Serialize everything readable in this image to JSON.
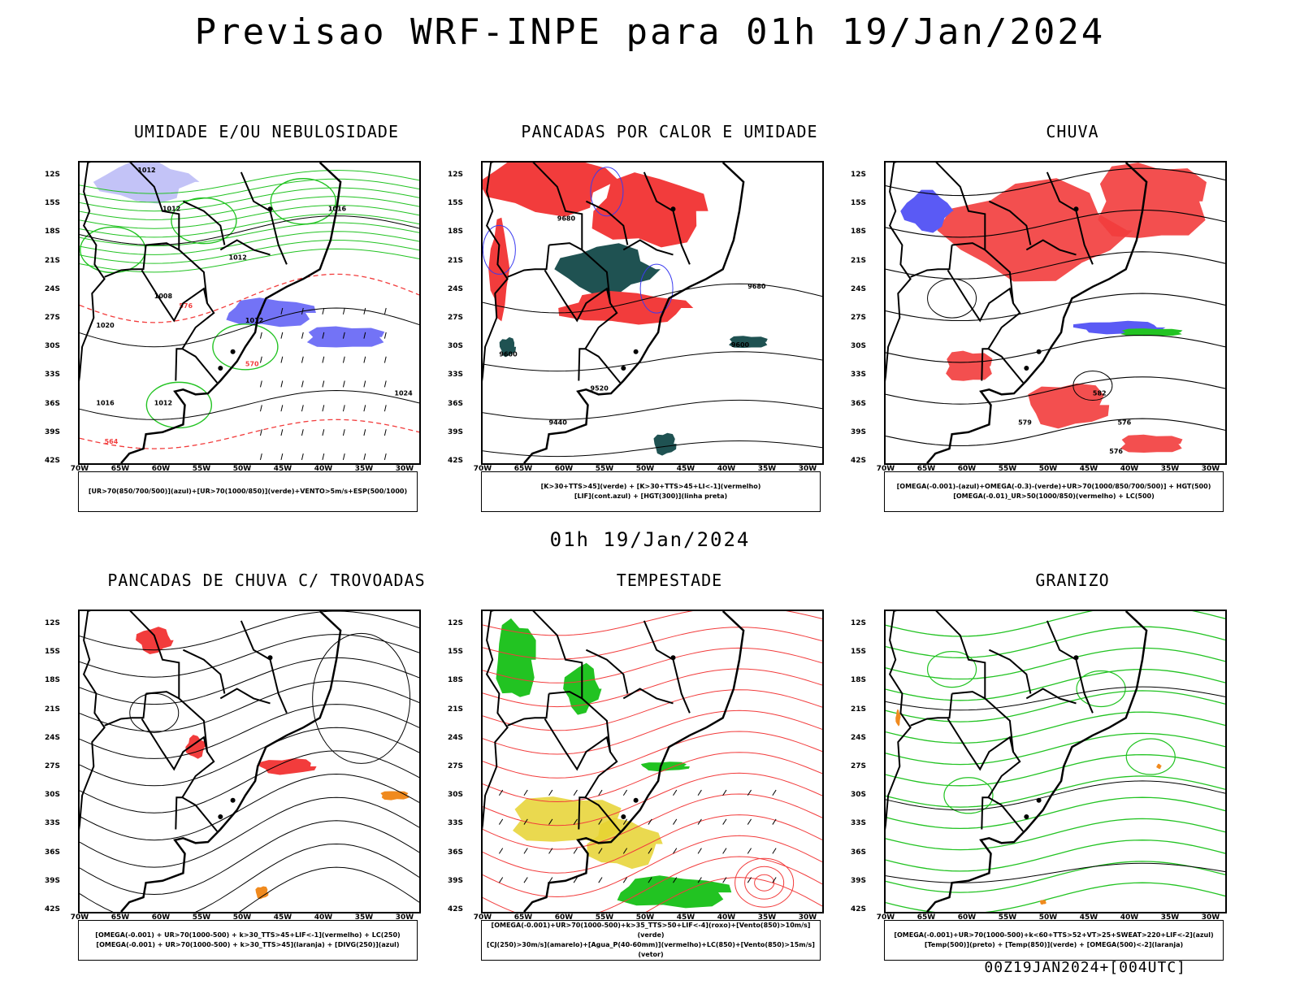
{
  "title": "Previsao WRF-INPE  para 01h 19/Jan/2024",
  "mid_title": "01h 19/Jan/2024",
  "footer": "00Z19JAN2024+[004UTC]",
  "lat_labels": [
    "12S",
    "15S",
    "18S",
    "21S",
    "24S",
    "27S",
    "30S",
    "33S",
    "36S",
    "39S",
    "42S"
  ],
  "lon_labels": [
    "70W",
    "65W",
    "60W",
    "55W",
    "50W",
    "45W",
    "40W",
    "35W",
    "30W"
  ],
  "colors": {
    "blue": "#5a5af5",
    "green": "#22c322",
    "red": "#f23c3c",
    "darkteal": "#1f5252",
    "yellow": "#e6d230",
    "orange": "#f08a1e",
    "purple": "#b4b4f5"
  },
  "panels": [
    {
      "id": "umidade",
      "title": "UMIDADE E/OU NEBULOSIDADE",
      "legend": [
        "[UR>70(850/700/500)](azul)+[UR>70(1000/850)](verde)+VENTO>5m/s+ESP(500/1000)"
      ]
    },
    {
      "id": "pancadas-calor",
      "title": "PANCADAS POR CALOR E UMIDADE",
      "legend": [
        "[K>30+TTS>45](verde) + [K>30+TTS>45+LI<-1](vermelho)",
        "[LIF](cont.azul) + [HGT(300)](linha preta)"
      ]
    },
    {
      "id": "chuva",
      "title": "CHUVA",
      "legend": [
        "[OMEGA(-0.001)-(azul)+OMEGA(-0.3)-(verde)+UR>70(1000/850/700/500)] + HGT(500)",
        "[OMEGA(-0.01)_UR>50(1000/850)(vermelho) + LC(500)"
      ]
    },
    {
      "id": "trovoadas",
      "title": "PANCADAS DE CHUVA C/ TROVOADAS",
      "legend": [
        "[OMEGA(-0.001) + UR>70(1000-500) + k>30_TTS>45+LIF<-1](vermelho) + LC(250)",
        "[OMEGA(-0.001) + UR>70(1000-500) + k>30_TTS>45](laranja) + [DIVG(250)](azul)"
      ]
    },
    {
      "id": "tempestade",
      "title": "TEMPESTADE",
      "legend": [
        "[OMEGA(-0.001)+UR>70(1000-500)+k>35_TTS>50+LIF<-4](roxo)+[Vento(850)>10m/s](verde)",
        "[CJ(250)>30m/s](amarelo)+[Agua_P(40-60mm)](vermelho)+LC(850)+[Vento(850)>15m/s](vetor)"
      ]
    },
    {
      "id": "granizo",
      "title": "GRANIZO",
      "legend": [
        "[OMEGA(-0.001)+UR>70(1000-500)+k<60+TTS>52+VT>25+SWEAT>220+LIF<-2](azul)",
        "[Temp(500)](preto) + [Temp(850)](verde) + [OMEGA(500)<-2](laranja)"
      ]
    }
  ],
  "contour_labels": {
    "umidade": [
      "1012",
      "1012",
      "1016",
      "1012",
      "1008",
      "1012",
      "1016",
      "1012",
      "1020",
      "1024",
      "576",
      "570",
      "564"
    ],
    "pancadas-calor": [
      "9680",
      "9600",
      "9520",
      "9440",
      "9680",
      "9600"
    ],
    "chuva": [
      "582",
      "576",
      "579",
      "576"
    ]
  }
}
